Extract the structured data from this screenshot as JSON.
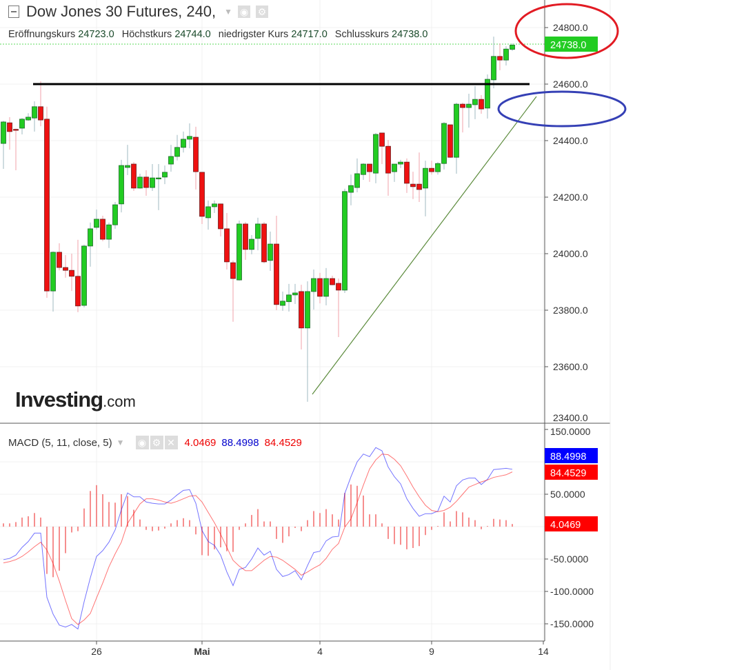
{
  "header": {
    "title": "Dow Jones 30 Futures, 240,",
    "ohlc": [
      {
        "label": "Eröffnungskurs",
        "value": "24723.0"
      },
      {
        "label": "Höchstkurs",
        "value": "24744.0"
      },
      {
        "label": "niedrigster Kurs",
        "value": "24717.0"
      },
      {
        "label": "Schlusskurs",
        "value": "24738.0"
      }
    ]
  },
  "logo": {
    "brand": "Investing",
    "suffix": ".com"
  },
  "colors": {
    "up": "#22cc22",
    "down": "#ee1111",
    "macd": "#0000ff",
    "signal": "#ff0000",
    "histogram": "#ee3333",
    "last_price_tag": "#22cc22",
    "annotation_red": "#e21b23",
    "annotation_blue": "#3540b5",
    "resistance_line": "#000000",
    "trend_line": "#5a8a3a"
  },
  "price_axis": {
    "labels": [
      "24800.0",
      "24600.0",
      "24400.0",
      "24200.0",
      "24000.0",
      "23800.0",
      "23600.0",
      "23400.0"
    ],
    "values": [
      24800,
      24600,
      24400,
      24200,
      24000,
      23800,
      23600,
      23400
    ],
    "last_price": "24738.0"
  },
  "time_axis": {
    "labels": [
      "26",
      "Mai",
      "4",
      "9",
      "14"
    ],
    "candle_index": [
      15,
      32,
      51,
      69,
      87
    ]
  },
  "macd": {
    "legend": "MACD (5, 11, close, 5)",
    "hist_value": "4.0469",
    "macd_value": "88.4998",
    "signal_value": "84.4529",
    "axis_labels": [
      "150.0000",
      "50.0000",
      "-50.0000",
      "-100.0000",
      "-150.0000"
    ],
    "axis_values": [
      150,
      50,
      -50,
      -100,
      -150
    ]
  },
  "chart_data": [
    {
      "type": "candlestick",
      "title": "Dow Jones 30 Futures, 240,",
      "ylim": [
        23400,
        24850
      ],
      "grid": true,
      "resistance_level": 24600,
      "ohlc_fields": [
        "open",
        "high",
        "low",
        "close"
      ],
      "candles": [
        [
          24390,
          24470,
          24300,
          24466
        ],
        [
          24463,
          24483,
          24368,
          24432
        ],
        [
          24440,
          24442,
          24295,
          24437
        ],
        [
          24444,
          24480,
          24422,
          24476
        ],
        [
          24473,
          24497,
          24470,
          24483
        ],
        [
          24480,
          24539,
          24432,
          24520
        ],
        [
          24520,
          24610,
          24451,
          24473
        ],
        [
          24476,
          24520,
          23844,
          23868
        ],
        [
          23868,
          24008,
          23795,
          24005
        ],
        [
          24005,
          24037,
          23941,
          23951
        ],
        [
          23951,
          23995,
          23915,
          23941
        ],
        [
          23941,
          24000,
          23868,
          23920
        ],
        [
          23920,
          24049,
          23793,
          23815
        ],
        [
          23817,
          24032,
          23810,
          24027
        ],
        [
          24027,
          24110,
          23954,
          24088
        ],
        [
          24093,
          24156,
          24085,
          24122
        ],
        [
          24122,
          24134,
          24044,
          24051
        ],
        [
          24051,
          24110,
          24020,
          24102
        ],
        [
          24102,
          24183,
          24088,
          24173
        ],
        [
          24176,
          24332,
          24146,
          24312
        ],
        [
          24305,
          24385,
          24278,
          24312
        ],
        [
          24317,
          24324,
          24222,
          24232
        ],
        [
          24232,
          24283,
          24230,
          24271
        ],
        [
          24271,
          24295,
          24205,
          24234
        ],
        [
          24234,
          24317,
          24222,
          24268
        ],
        [
          24266,
          24317,
          24154,
          24268
        ],
        [
          24271,
          24312,
          24246,
          24288
        ],
        [
          24317,
          24385,
          24290,
          24344
        ],
        [
          24344,
          24420,
          24330,
          24376
        ],
        [
          24376,
          24432,
          24358,
          24405
        ],
        [
          24405,
          24461,
          24373,
          24415
        ],
        [
          24412,
          24449,
          24227,
          24290
        ],
        [
          24288,
          24288,
          24105,
          24132
        ],
        [
          24127,
          24188,
          24085,
          24166
        ],
        [
          24166,
          24188,
          24144,
          24176
        ],
        [
          24176,
          24176,
          24061,
          24088
        ],
        [
          24088,
          24144,
          23944,
          23971
        ],
        [
          23968,
          23976,
          23759,
          23912
        ],
        [
          23907,
          24117,
          23905,
          24105
        ],
        [
          24105,
          24112,
          23978,
          24015
        ],
        [
          24015,
          24066,
          23998,
          24051
        ],
        [
          24054,
          24127,
          24012,
          24105
        ],
        [
          24105,
          24112,
          23966,
          23971
        ],
        [
          23976,
          24078,
          23939,
          24034
        ],
        [
          24034,
          24134,
          23800,
          23820
        ],
        [
          23817,
          23866,
          23798,
          23832
        ],
        [
          23830,
          23893,
          23795,
          23854
        ],
        [
          23854,
          23893,
          23822,
          23861
        ],
        [
          23866,
          23890,
          23661,
          23737
        ],
        [
          23737,
          23902,
          23476,
          23866
        ],
        [
          23866,
          23944,
          23802,
          23912
        ],
        [
          23912,
          23932,
          23824,
          23849
        ],
        [
          23849,
          23949,
          23817,
          23912
        ],
        [
          23912,
          23922,
          23888,
          23890
        ],
        [
          23895,
          23912,
          23705,
          23871
        ],
        [
          23871,
          24230,
          23861,
          24220
        ],
        [
          24217,
          24280,
          24171,
          24241
        ],
        [
          24234,
          24337,
          24217,
          24283
        ],
        [
          24280,
          24320,
          24261,
          24317
        ],
        [
          24317,
          24317,
          24254,
          24290
        ],
        [
          24285,
          24427,
          24249,
          24422
        ],
        [
          24427,
          24427,
          24317,
          24380
        ],
        [
          24380,
          24402,
          24205,
          24285
        ],
        [
          24290,
          24317,
          24254,
          24317
        ],
        [
          24317,
          24332,
          24303,
          24324
        ],
        [
          24324,
          24337,
          24215,
          24249
        ],
        [
          24246,
          24290,
          24193,
          24237
        ],
        [
          24246,
          24358,
          24183,
          24227
        ],
        [
          24232,
          24329,
          24132,
          24302
        ],
        [
          24302,
          24329,
          24280,
          24290
        ],
        [
          24290,
          24324,
          24280,
          24319
        ],
        [
          24319,
          24466,
          24298,
          24461
        ],
        [
          24456,
          24456,
          24339,
          24341
        ],
        [
          24341,
          24534,
          24283,
          24529
        ],
        [
          24529,
          24534,
          24429,
          24517
        ],
        [
          24517,
          24566,
          24446,
          24529
        ],
        [
          24527,
          24593,
          24476,
          24546
        ],
        [
          24546,
          24561,
          24495,
          24512
        ],
        [
          24515,
          24634,
          24478,
          24617
        ],
        [
          24615,
          24768,
          24585,
          24698
        ],
        [
          24698,
          24744,
          24649,
          24685
        ],
        [
          24685,
          24734,
          24666,
          24724
        ],
        [
          24723,
          24744,
          24717,
          24738
        ]
      ]
    },
    {
      "type": "line+bar",
      "title": "MACD (5, 11, close, 5)",
      "ylim": [
        -170,
        160
      ],
      "series": [
        {
          "name": "MACD",
          "values": [
            -51,
            -49,
            -44,
            -32,
            -23,
            -10,
            -10,
            -109,
            -135,
            -152,
            -155,
            -151,
            -158,
            -116,
            -79,
            -46,
            -37,
            -24,
            -5,
            26,
            52,
            46,
            46,
            38,
            36,
            35,
            35,
            41,
            49,
            56,
            57,
            36,
            -6,
            -23,
            -29,
            -44,
            -70,
            -91,
            -66,
            -63,
            -50,
            -33,
            -44,
            -38,
            -66,
            -77,
            -74,
            -68,
            -82,
            -60,
            -40,
            -38,
            -22,
            -16,
            -15,
            51,
            77,
            100,
            112,
            108,
            122,
            117,
            92,
            77,
            66,
            43,
            28,
            16,
            20,
            20,
            24,
            47,
            38,
            63,
            72,
            75,
            75,
            65,
            73,
            88,
            89,
            90,
            88.4998
          ]
        },
        {
          "name": "Signal",
          "values": [
            -56,
            -54,
            -51,
            -46,
            -39,
            -31,
            -24,
            -36,
            -57,
            -84,
            -114,
            -142,
            -151,
            -144,
            -134,
            -110,
            -87,
            -62,
            -42,
            -24,
            5,
            20,
            35,
            43,
            43,
            41,
            38,
            36,
            39,
            43,
            47,
            48,
            38,
            22,
            6,
            -12,
            -32,
            -52,
            -61,
            -68,
            -68,
            -60,
            -52,
            -46,
            -47,
            -52,
            -59,
            -66,
            -75,
            -70,
            -64,
            -59,
            -49,
            -35,
            -26,
            -1,
            12,
            37,
            64,
            89,
            103,
            112,
            111,
            104,
            94,
            78,
            61,
            46,
            33,
            25,
            23,
            25,
            30,
            39,
            50,
            61,
            65,
            69,
            72,
            76,
            78,
            80,
            84.4529
          ]
        },
        {
          "name": "Histogram",
          "values": [
            5,
            5,
            7,
            14,
            16,
            21,
            14,
            -73,
            -78,
            -68,
            -41,
            -9,
            -7,
            28,
            55,
            64,
            50,
            38,
            37,
            50,
            47,
            26,
            11,
            -5,
            -7,
            -6,
            -3,
            5,
            10,
            13,
            10,
            -12,
            -44,
            -45,
            -35,
            -32,
            -38,
            -39,
            -5,
            5,
            18,
            27,
            8,
            8,
            -19,
            -25,
            -15,
            -2,
            -7,
            10,
            24,
            21,
            27,
            19,
            11,
            52,
            65,
            63,
            48,
            19,
            19,
            5,
            -19,
            -27,
            -28,
            -35,
            -33,
            -30,
            -13,
            -5,
            1,
            22,
            8,
            24,
            22,
            14,
            10,
            -4,
            1,
            12,
            11,
            10,
            4.0469
          ]
        }
      ]
    }
  ]
}
